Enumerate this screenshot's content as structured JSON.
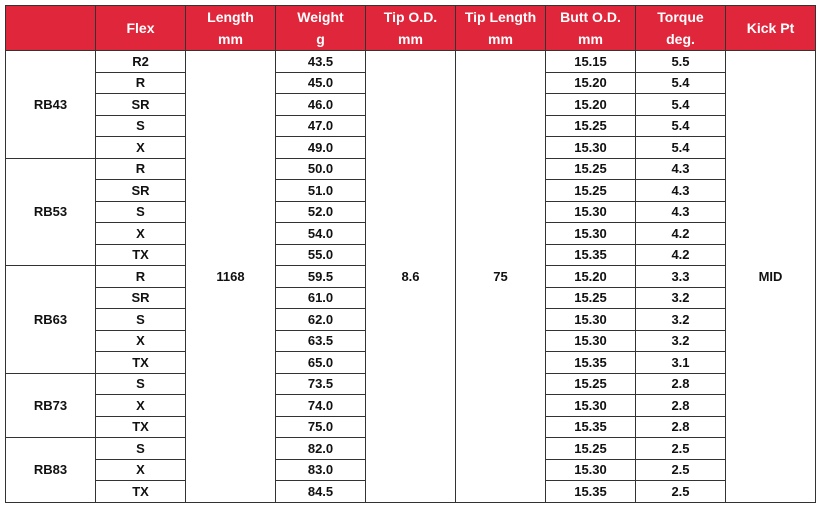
{
  "header": {
    "colors": {
      "header_bg": "#e0263b",
      "header_text": "#ffffff"
    },
    "columns": [
      {
        "line1": "",
        "line2": ""
      },
      {
        "line1": "Flex",
        "line2": ""
      },
      {
        "line1": "Length",
        "line2": "mm"
      },
      {
        "line1": "Weight",
        "line2": "g"
      },
      {
        "line1": "Tip O.D.",
        "line2": "mm"
      },
      {
        "line1": "Tip Length",
        "line2": "mm"
      },
      {
        "line1": "Butt O.D.",
        "line2": "mm"
      },
      {
        "line1": "Torque",
        "line2": "deg."
      },
      {
        "line1": "Kick Pt",
        "line2": ""
      }
    ]
  },
  "shared": {
    "length": "1168",
    "tip_od": "8.6",
    "tip_length": "75",
    "kick_pt": "MID"
  },
  "models": [
    {
      "name": "RB43",
      "rows": [
        {
          "flex": "R2",
          "weight": "43.5",
          "butt": "15.15",
          "torque": "5.5"
        },
        {
          "flex": "R",
          "weight": "45.0",
          "butt": "15.20",
          "torque": "5.4"
        },
        {
          "flex": "SR",
          "weight": "46.0",
          "butt": "15.20",
          "torque": "5.4"
        },
        {
          "flex": "S",
          "weight": "47.0",
          "butt": "15.25",
          "torque": "5.4"
        },
        {
          "flex": "X",
          "weight": "49.0",
          "butt": "15.30",
          "torque": "5.4"
        }
      ]
    },
    {
      "name": "RB53",
      "rows": [
        {
          "flex": "R",
          "weight": "50.0",
          "butt": "15.25",
          "torque": "4.3"
        },
        {
          "flex": "SR",
          "weight": "51.0",
          "butt": "15.25",
          "torque": "4.3"
        },
        {
          "flex": "S",
          "weight": "52.0",
          "butt": "15.30",
          "torque": "4.3"
        },
        {
          "flex": "X",
          "weight": "54.0",
          "butt": "15.30",
          "torque": "4.2"
        },
        {
          "flex": "TX",
          "weight": "55.0",
          "butt": "15.35",
          "torque": "4.2"
        }
      ]
    },
    {
      "name": "RB63",
      "rows": [
        {
          "flex": "R",
          "weight": "59.5",
          "butt": "15.20",
          "torque": "3.3"
        },
        {
          "flex": "SR",
          "weight": "61.0",
          "butt": "15.25",
          "torque": "3.2"
        },
        {
          "flex": "S",
          "weight": "62.0",
          "butt": "15.30",
          "torque": "3.2"
        },
        {
          "flex": "X",
          "weight": "63.5",
          "butt": "15.30",
          "torque": "3.2"
        },
        {
          "flex": "TX",
          "weight": "65.0",
          "butt": "15.35",
          "torque": "3.1"
        }
      ]
    },
    {
      "name": "RB73",
      "rows": [
        {
          "flex": "S",
          "weight": "73.5",
          "butt": "15.25",
          "torque": "2.8"
        },
        {
          "flex": "X",
          "weight": "74.0",
          "butt": "15.30",
          "torque": "2.8"
        },
        {
          "flex": "TX",
          "weight": "75.0",
          "butt": "15.35",
          "torque": "2.8"
        }
      ]
    },
    {
      "name": "RB83",
      "rows": [
        {
          "flex": "S",
          "weight": "82.0",
          "butt": "15.25",
          "torque": "2.5"
        },
        {
          "flex": "X",
          "weight": "83.0",
          "butt": "15.30",
          "torque": "2.5"
        },
        {
          "flex": "TX",
          "weight": "84.5",
          "butt": "15.35",
          "torque": "2.5"
        }
      ]
    }
  ]
}
